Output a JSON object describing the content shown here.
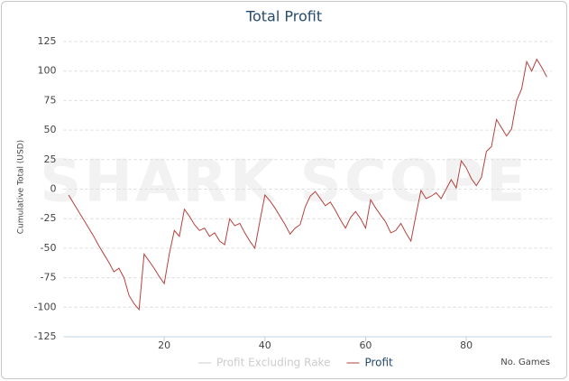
{
  "chart_data": {
    "type": "line",
    "title": "Total Profit",
    "y_label": "Cumulative Total (USD)",
    "x_label": "No. Games",
    "watermark": "SHARK SCOPE",
    "x": [
      1,
      2,
      3,
      4,
      5,
      6,
      7,
      8,
      9,
      10,
      11,
      12,
      13,
      14,
      15,
      16,
      17,
      18,
      19,
      20,
      21,
      22,
      23,
      24,
      25,
      26,
      27,
      28,
      29,
      30,
      31,
      32,
      33,
      34,
      35,
      36,
      37,
      38,
      39,
      40,
      41,
      42,
      43,
      44,
      45,
      46,
      47,
      48,
      49,
      50,
      51,
      52,
      53,
      54,
      55,
      56,
      57,
      58,
      59,
      60,
      61,
      62,
      63,
      64,
      65,
      66,
      67,
      68,
      69,
      70,
      71,
      72,
      73,
      74,
      75,
      76,
      77,
      78,
      79,
      80,
      81,
      82,
      83,
      84,
      85,
      86,
      87,
      88,
      89,
      90,
      91,
      92,
      93,
      94,
      95,
      96
    ],
    "series": [
      {
        "name": "Profit Excluding Rake",
        "color": "#cccccc",
        "visible": false
      },
      {
        "name": "Profit",
        "color": "#b5423d",
        "visible": true,
        "values": [
          -5,
          -12,
          -19,
          -26,
          -33,
          -40,
          -48,
          -55,
          -62,
          -70,
          -67,
          -75,
          -90,
          -97,
          -102,
          -55,
          -61,
          -67,
          -74,
          -80,
          -55,
          -35,
          -40,
          -17,
          -23,
          -30,
          -35,
          -33,
          -40,
          -37,
          -44,
          -47,
          -25,
          -31,
          -29,
          -37,
          -44,
          -50,
          -27,
          -5,
          -10,
          -16,
          -23,
          -30,
          -38,
          -33,
          -30,
          -15,
          -6,
          -2,
          -8,
          -14,
          -11,
          -18,
          -26,
          -33,
          -24,
          -19,
          -25,
          -33,
          -9,
          -16,
          -22,
          -28,
          -37,
          -35,
          -29,
          -37,
          -44,
          -22,
          -1,
          -8,
          -6,
          -3,
          -8,
          0,
          8,
          1,
          24,
          18,
          9,
          3,
          10,
          32,
          36,
          59,
          52,
          45,
          51,
          75,
          85,
          108,
          100,
          110,
          103,
          95
        ]
      }
    ],
    "xlim": [
      0,
      97
    ],
    "xticks": [
      20,
      40,
      60,
      80
    ],
    "ylim": [
      -125,
      125
    ],
    "yticks": [
      -125,
      -100,
      -75,
      -50,
      -25,
      0,
      25,
      50,
      75,
      100,
      125
    ],
    "grid": true
  }
}
